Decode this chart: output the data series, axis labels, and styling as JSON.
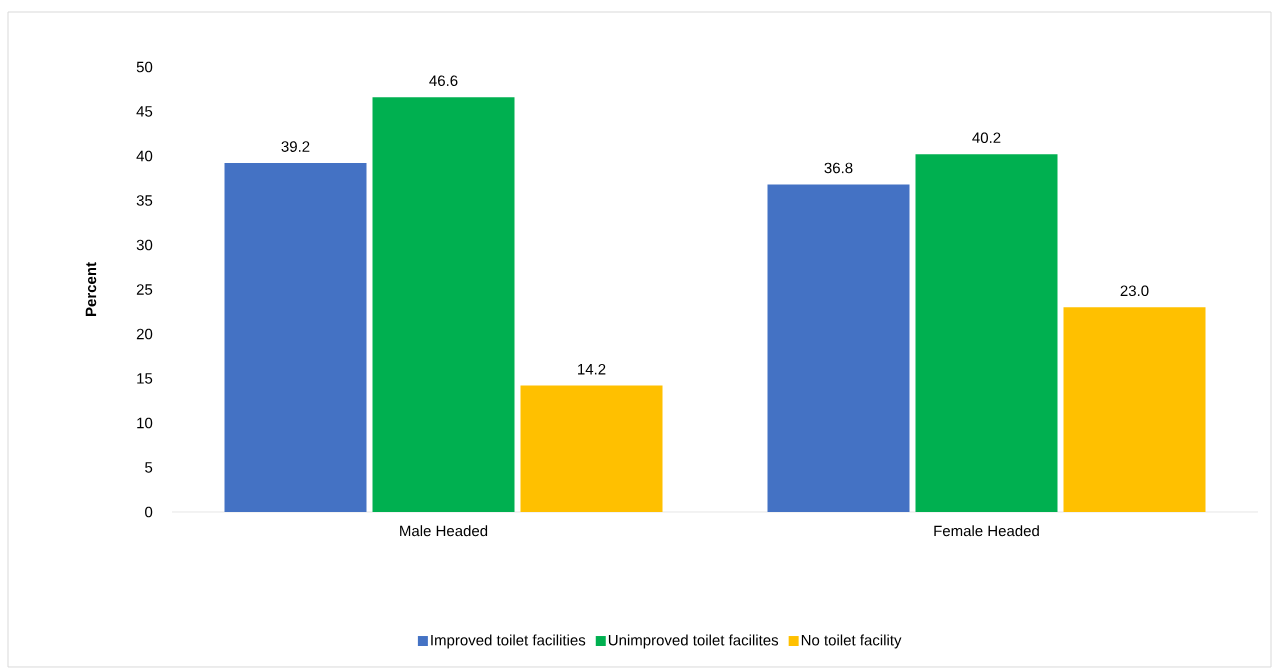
{
  "chart_data": {
    "type": "bar",
    "ylabel": "Percent",
    "categories": [
      "Male Headed",
      "Female Headed"
    ],
    "series": [
      {
        "name": "Improved toilet facilities",
        "color": "#4472c4",
        "values": [
          39.2,
          36.8
        ],
        "value_labels": [
          "39.2",
          "36.8"
        ]
      },
      {
        "name": "Unimproved toilet facilites",
        "color": "#00b050",
        "values": [
          46.6,
          40.2
        ],
        "value_labels": [
          "46.6",
          "40.2"
        ]
      },
      {
        "name": "No toilet facility",
        "color": "#ffc000",
        "values": [
          14.2,
          23.0
        ],
        "value_labels": [
          "14.2",
          "23.0"
        ]
      }
    ],
    "ylim": [
      0,
      50
    ],
    "yticks": [
      0,
      5,
      10,
      15,
      20,
      25,
      30,
      35,
      40,
      45,
      50
    ],
    "legend": "bottom"
  }
}
